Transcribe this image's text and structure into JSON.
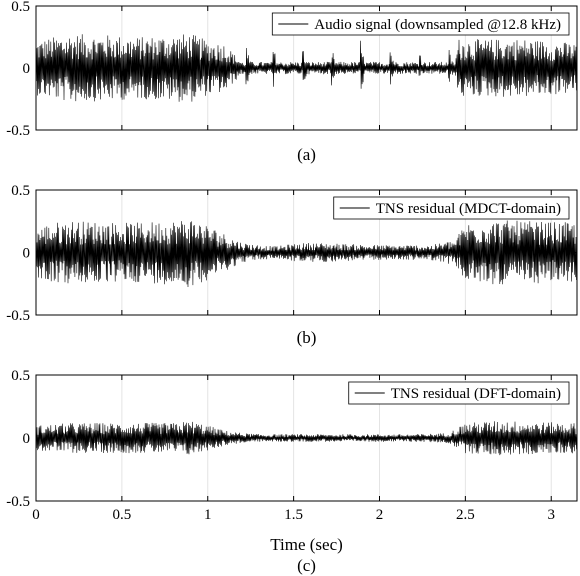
{
  "chart_data": [
    {
      "type": "line",
      "panel_label": "(a)",
      "legend": "Audio signal (downsampled @12.8 kHz)",
      "legend_position": "top-right",
      "xlim": [
        0,
        3.15
      ],
      "ylim": [
        -0.5,
        0.5
      ],
      "yticks": [
        "0.5",
        "0",
        "-0.5"
      ],
      "ytick_values": [
        0.5,
        0,
        -0.5
      ],
      "xticks": [],
      "xtick_values": [
        0,
        0.5,
        1,
        1.5,
        2,
        2.5,
        3
      ],
      "xlabel": "",
      "grid": "vertical",
      "envelope": {
        "x": [
          0,
          0.1,
          0.2,
          0.3,
          0.4,
          0.5,
          0.6,
          0.7,
          0.8,
          0.9,
          1.0,
          1.1,
          1.15,
          1.2,
          2.44,
          2.46,
          2.6,
          2.8,
          3.0,
          3.15
        ],
        "amplitude": [
          0.22,
          0.25,
          0.28,
          0.27,
          0.27,
          0.26,
          0.25,
          0.26,
          0.27,
          0.28,
          0.22,
          0.2,
          0.12,
          0.05,
          0.05,
          0.24,
          0.23,
          0.24,
          0.22,
          0.2
        ]
      },
      "peaks": {
        "x": [
          1.22,
          1.38,
          1.55,
          1.72,
          1.89,
          2.06,
          2.23,
          2.4
        ],
        "amplitude": [
          0.25,
          0.22,
          0.22,
          0.2,
          0.24,
          0.22,
          0.2,
          0.2
        ]
      }
    },
    {
      "type": "line",
      "panel_label": "(b)",
      "legend": "TNS residual (MDCT-domain)",
      "legend_position": "top-right",
      "xlim": [
        0,
        3.15
      ],
      "ylim": [
        -0.5,
        0.5
      ],
      "yticks": [
        "0.5",
        "0",
        "-0.5"
      ],
      "ytick_values": [
        0.5,
        0,
        -0.5
      ],
      "xticks": [],
      "xtick_values": [
        0,
        0.5,
        1,
        1.5,
        2,
        2.5,
        3
      ],
      "xlabel": "",
      "grid": "vertical",
      "envelope": {
        "x": [
          0,
          0.1,
          0.2,
          0.3,
          0.4,
          0.5,
          0.6,
          0.7,
          0.8,
          0.9,
          1.0,
          1.1,
          1.2,
          1.3,
          1.4,
          1.5,
          1.6,
          1.8,
          2.0,
          2.2,
          2.3,
          2.4,
          2.44,
          2.5,
          2.7,
          2.9,
          3.15
        ],
        "amplitude": [
          0.2,
          0.24,
          0.26,
          0.25,
          0.25,
          0.24,
          0.24,
          0.25,
          0.26,
          0.28,
          0.22,
          0.15,
          0.08,
          0.06,
          0.05,
          0.07,
          0.08,
          0.07,
          0.06,
          0.06,
          0.06,
          0.09,
          0.1,
          0.24,
          0.26,
          0.25,
          0.24
        ]
      }
    },
    {
      "type": "line",
      "panel_label": "(c)",
      "legend": "TNS residual (DFT-domain)",
      "legend_position": "top-right",
      "xlim": [
        0,
        3.15
      ],
      "ylim": [
        -0.5,
        0.5
      ],
      "yticks": [
        "0.5",
        "0",
        "-0.5"
      ],
      "ytick_values": [
        0.5,
        0,
        -0.5
      ],
      "xticks": [
        "0",
        "0.5",
        "1",
        "1.5",
        "2",
        "2.5",
        "3"
      ],
      "xtick_values": [
        0,
        0.5,
        1,
        1.5,
        2,
        2.5,
        3
      ],
      "xlabel": "Time (sec)",
      "grid": "vertical",
      "envelope": {
        "x": [
          0,
          0.2,
          0.4,
          0.6,
          0.8,
          0.9,
          1.0,
          1.1,
          1.2,
          1.3,
          1.5,
          1.8,
          2.0,
          2.2,
          2.4,
          2.45,
          2.5,
          2.7,
          2.9,
          3.15
        ],
        "amplitude": [
          0.1,
          0.12,
          0.12,
          0.12,
          0.12,
          0.14,
          0.1,
          0.06,
          0.04,
          0.03,
          0.03,
          0.03,
          0.03,
          0.03,
          0.04,
          0.08,
          0.12,
          0.14,
          0.13,
          0.12
        ]
      }
    }
  ]
}
